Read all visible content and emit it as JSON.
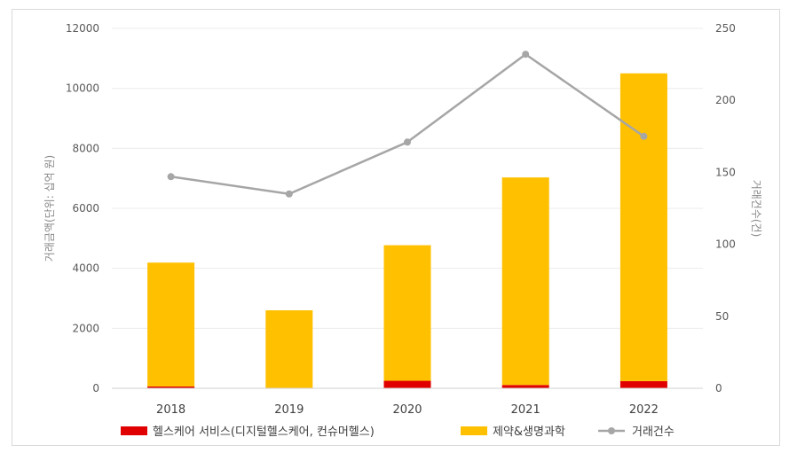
{
  "chart_data": {
    "type": "bar",
    "stacked": true,
    "categories": [
      "2018",
      "2019",
      "2020",
      "2021",
      "2022"
    ],
    "series": [
      {
        "name": "헬스케어 서비스(디지털헬스케어, 컨슈머헬스)",
        "type": "bar",
        "axis": "left",
        "color": "#e00000",
        "values": [
          60,
          10,
          250,
          110,
          240
        ]
      },
      {
        "name": "제약&생명과학",
        "type": "bar",
        "axis": "left",
        "color": "#ffc000",
        "values": [
          4130,
          2590,
          4520,
          6920,
          10260
        ]
      },
      {
        "name": "거래건수",
        "type": "line",
        "axis": "right",
        "color": "#a6a6a6",
        "values": [
          147,
          135,
          171,
          232,
          175
        ]
      }
    ],
    "y_left": {
      "label": "거래금액(단위: 십억 원)",
      "ylim": [
        0,
        12000
      ],
      "ticks": [
        "0",
        "2000",
        "4000",
        "6000",
        "8000",
        "10000",
        "12000"
      ]
    },
    "y_right": {
      "label": "거래건수(건)",
      "ylim": [
        0,
        250
      ],
      "ticks": [
        "0",
        "50",
        "100",
        "150",
        "200",
        "250"
      ]
    },
    "grid": true,
    "legend": "bottom"
  }
}
